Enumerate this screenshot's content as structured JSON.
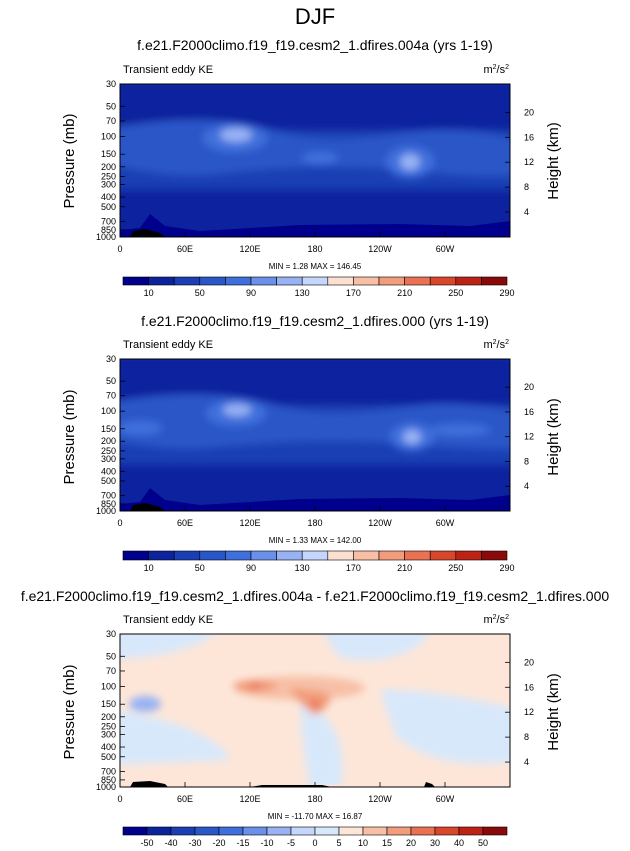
{
  "page_title": "DJF",
  "colors": {
    "abs_scale": [
      "#00008c",
      "#0b249e",
      "#1a3fb4",
      "#2a57c8",
      "#3f6fdc",
      "#6a90ea",
      "#98b2f4",
      "#c4d6fb",
      "#fbe0d2",
      "#f7c0a6",
      "#f29c7c",
      "#ea7252",
      "#d9472b",
      "#bc2314",
      "#8a0a0a"
    ],
    "diff_scale": [
      "#00008c",
      "#0b249e",
      "#1a3fb4",
      "#2a57c8",
      "#3f6fdc",
      "#6a90ea",
      "#98b2f4",
      "#c4d6fb",
      "#d8e8fb",
      "#fde6d8",
      "#f7c0a6",
      "#f29c7c",
      "#ea7252",
      "#d9472b",
      "#bc2314",
      "#8a0a0a"
    ]
  },
  "chart_data": [
    {
      "type": "heatmap",
      "title": "f.e21.F2000climo.f19_f19.cesm2_1.dfires.004a (yrs 1-19)",
      "left_label": "Transient eddy KE",
      "units_base": "m",
      "units_exp1": "2",
      "units_mid": "/s",
      "units_exp2": "2",
      "xlabel": "",
      "ylabel": "Pressure (mb)",
      "y2label": "Height (km)",
      "x_ticks": [
        "0",
        "60E",
        "120E",
        "180",
        "120W",
        "60W"
      ],
      "x_range": [
        0,
        360
      ],
      "y_ticks": [
        "30",
        "50",
        "70",
        "100",
        "150",
        "200",
        "250",
        "300",
        "400",
        "500",
        "700",
        "850",
        "1000"
      ],
      "y_tick_values": [
        30,
        50,
        70,
        100,
        150,
        200,
        250,
        300,
        400,
        500,
        700,
        850,
        1000
      ],
      "y_range_mb": [
        1000,
        30
      ],
      "height_ticks": [
        "20",
        "16",
        "12",
        "8",
        "4"
      ],
      "height_tick_values": [
        20,
        16,
        12,
        8,
        4
      ],
      "stats": "MIN =   1.28   MAX = 146.45",
      "min": 1.28,
      "max": 146.45,
      "colorbar_labels": [
        "10",
        "50",
        "90",
        "130",
        "170",
        "210",
        "250",
        "290"
      ],
      "colorbar_levels": [
        10,
        30,
        50,
        70,
        90,
        110,
        130,
        150,
        170,
        190,
        210,
        230,
        250,
        270,
        290
      ]
    },
    {
      "type": "heatmap",
      "title": "f.e21.F2000climo.f19_f19.cesm2_1.dfires.000 (yrs 1-19)",
      "left_label": "Transient eddy KE",
      "units_base": "m",
      "units_exp1": "2",
      "units_mid": "/s",
      "units_exp2": "2",
      "xlabel": "",
      "ylabel": "Pressure (mb)",
      "y2label": "Height (km)",
      "x_ticks": [
        "0",
        "60E",
        "120E",
        "180",
        "120W",
        "60W"
      ],
      "x_range": [
        0,
        360
      ],
      "y_ticks": [
        "30",
        "50",
        "70",
        "100",
        "150",
        "200",
        "250",
        "300",
        "400",
        "500",
        "700",
        "850",
        "1000"
      ],
      "y_tick_values": [
        30,
        50,
        70,
        100,
        150,
        200,
        250,
        300,
        400,
        500,
        700,
        850,
        1000
      ],
      "y_range_mb": [
        1000,
        30
      ],
      "height_ticks": [
        "20",
        "16",
        "12",
        "8",
        "4"
      ],
      "height_tick_values": [
        20,
        16,
        12,
        8,
        4
      ],
      "stats": "MIN =   1.33   MAX = 142.00",
      "min": 1.33,
      "max": 142.0,
      "colorbar_labels": [
        "10",
        "50",
        "90",
        "130",
        "170",
        "210",
        "250",
        "290"
      ],
      "colorbar_levels": [
        10,
        30,
        50,
        70,
        90,
        110,
        130,
        150,
        170,
        190,
        210,
        230,
        250,
        270,
        290
      ]
    },
    {
      "type": "heatmap",
      "title": "f.e21.F2000climo.f19_f19.cesm2_1.dfires.004a - f.e21.F2000climo.f19_f19.cesm2_1.dfires.000",
      "left_label": "Transient eddy KE",
      "units_base": "m",
      "units_exp1": "2",
      "units_mid": "/s",
      "units_exp2": "2",
      "xlabel": "",
      "ylabel": "Pressure (mb)",
      "y2label": "Height (km)",
      "x_ticks": [
        "0",
        "60E",
        "120E",
        "180",
        "120W",
        "60W"
      ],
      "x_range": [
        0,
        360
      ],
      "y_ticks": [
        "30",
        "50",
        "70",
        "100",
        "150",
        "200",
        "250",
        "300",
        "400",
        "500",
        "700",
        "850",
        "1000"
      ],
      "y_tick_values": [
        30,
        50,
        70,
        100,
        150,
        200,
        250,
        300,
        400,
        500,
        700,
        850,
        1000
      ],
      "y_range_mb": [
        1000,
        30
      ],
      "height_ticks": [
        "20",
        "16",
        "12",
        "8",
        "4"
      ],
      "height_tick_values": [
        20,
        16,
        12,
        8,
        4
      ],
      "stats": "MIN = -11.70   MAX =  16.87",
      "min": -11.7,
      "max": 16.87,
      "colorbar_labels": [
        "-50",
        "-40",
        "-30",
        "-20",
        "-15",
        "-10",
        "-5",
        "0",
        "5",
        "10",
        "15",
        "20",
        "30",
        "40",
        "50"
      ],
      "colorbar_levels": [
        -50,
        -40,
        -30,
        -20,
        -15,
        -10,
        -5,
        0,
        5,
        10,
        15,
        20,
        30,
        40,
        50
      ]
    }
  ]
}
